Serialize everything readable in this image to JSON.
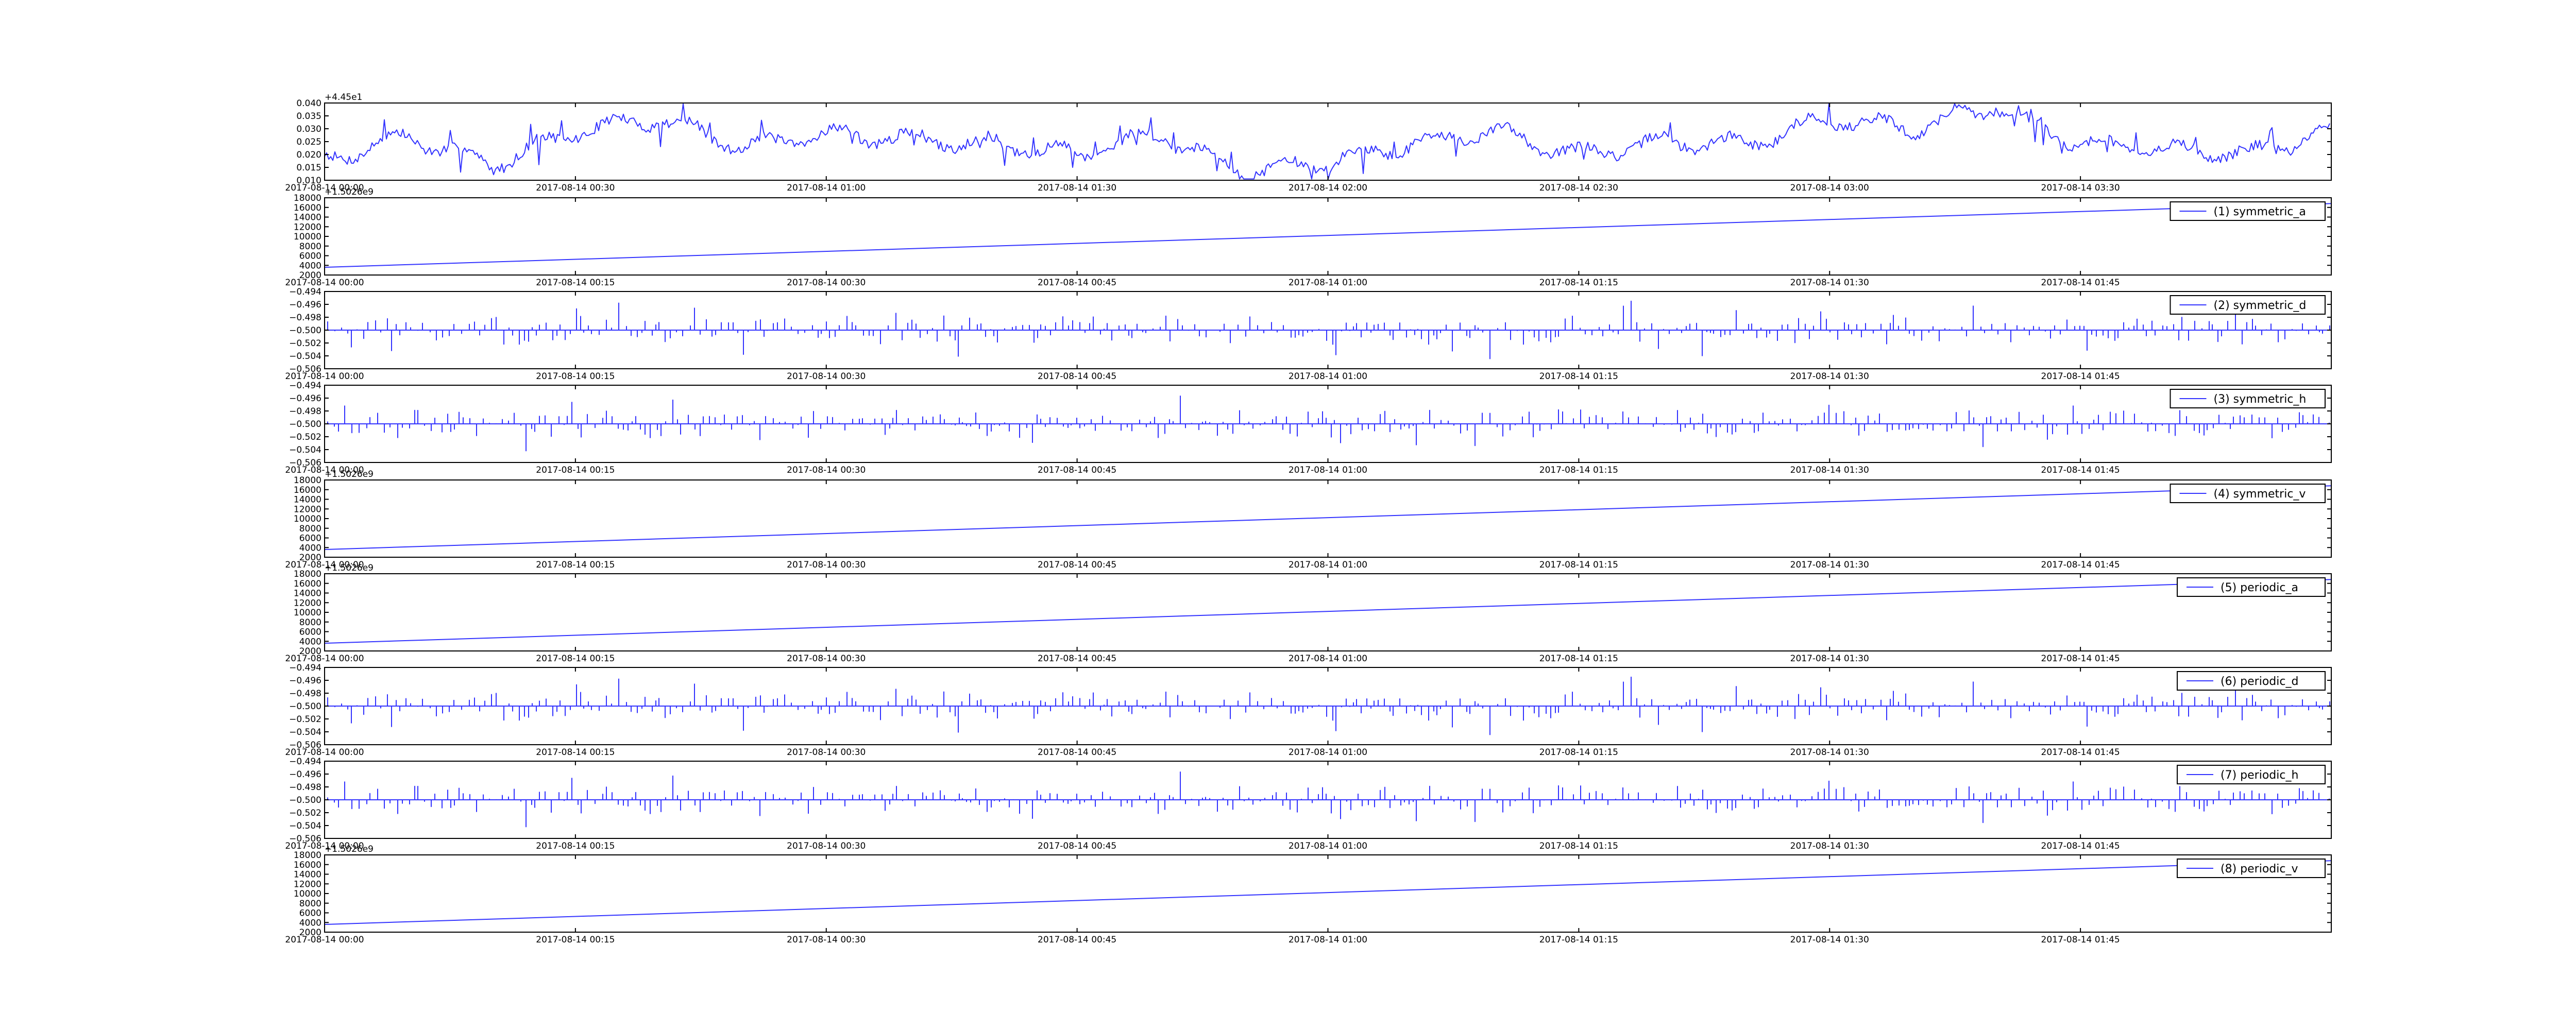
{
  "colors": {
    "line": "#3333ff",
    "axes": "#000000",
    "background": "#ffffff"
  },
  "chart_data": [
    {
      "type": "line",
      "offset_label": "+4.45e1",
      "ylim": [
        0.01,
        0.04
      ],
      "yticks": [
        "0.010",
        "0.015",
        "0.020",
        "0.025",
        "0.030",
        "0.035",
        "0.040"
      ],
      "xlim": [
        "2017-08-14 00:00",
        "2017-08-14 04:00"
      ],
      "xticks": [
        "2017-08-14 00:00",
        "2017-08-14 00:30",
        "2017-08-14 01:00",
        "2017-08-14 01:30",
        "2017-08-14 02:00",
        "2017-08-14 02:30",
        "2017-08-14 03:00",
        "2017-08-14 03:30"
      ],
      "legend": null,
      "grid": false,
      "series": [
        {
          "profile": "noise",
          "x": [
            "2017-08-14 00:00",
            "2017-08-14 00:10",
            "2017-08-14 00:20",
            "2017-08-14 00:30",
            "2017-08-14 00:40",
            "2017-08-14 00:50",
            "2017-08-14 01:00",
            "2017-08-14 01:10",
            "2017-08-14 01:20",
            "2017-08-14 01:30",
            "2017-08-14 01:40",
            "2017-08-14 01:50",
            "2017-08-14 02:00",
            "2017-08-14 02:10",
            "2017-08-14 02:20",
            "2017-08-14 02:30",
            "2017-08-14 02:40",
            "2017-08-14 02:50",
            "2017-08-14 03:00",
            "2017-08-14 03:10",
            "2017-08-14 03:20",
            "2017-08-14 03:30",
            "2017-08-14 03:40",
            "2017-08-14 03:50",
            "2017-08-14 04:00"
          ],
          "values": [
            0.018,
            0.027,
            0.016,
            0.029,
            0.034,
            0.023,
            0.028,
            0.026,
            0.024,
            0.02,
            0.028,
            0.013,
            0.017,
            0.024,
            0.029,
            0.02,
            0.025,
            0.024,
            0.034,
            0.03,
            0.039,
            0.024,
            0.022,
            0.02,
            0.029
          ]
        }
      ]
    },
    {
      "type": "line",
      "offset_label": "+1.5026e9",
      "ylim": [
        2000,
        18000
      ],
      "yticks": [
        "2000",
        "4000",
        "6000",
        "8000",
        "10000",
        "12000",
        "14000",
        "16000",
        "18000"
      ],
      "xlim": [
        "2017-08-14 00:00",
        "2017-08-14 02:00"
      ],
      "xticks": [
        "2017-08-14 00:00",
        "2017-08-14 00:15",
        "2017-08-14 00:30",
        "2017-08-14 00:45",
        "2017-08-14 01:00",
        "2017-08-14 01:15",
        "2017-08-14 01:30",
        "2017-08-14 01:45"
      ],
      "legend": "(1) symmetric_a",
      "legend_loc": "upper right",
      "grid": false,
      "series": [
        {
          "profile": "linear",
          "x": [
            "2017-08-14 00:00",
            "2017-08-14 02:00"
          ],
          "values": [
            3600,
            16800
          ]
        }
      ]
    },
    {
      "type": "line",
      "offset_label": "",
      "ylim": [
        -0.506,
        -0.494
      ],
      "yticks": [
        "−0.506",
        "−0.504",
        "−0.502",
        "−0.500",
        "−0.498",
        "−0.496",
        "−0.494"
      ],
      "xlim": [
        "2017-08-14 00:00",
        "2017-08-14 02:00"
      ],
      "xticks": [
        "2017-08-14 00:00",
        "2017-08-14 00:15",
        "2017-08-14 00:30",
        "2017-08-14 00:45",
        "2017-08-14 01:00",
        "2017-08-14 01:15",
        "2017-08-14 01:30",
        "2017-08-14 01:45"
      ],
      "legend": "(2) symmetric_d",
      "legend_loc": "upper right",
      "grid": false,
      "series": [
        {
          "profile": "spikes",
          "seed": 11,
          "baseline": -0.5,
          "amplitude": 0.0045,
          "x": [
            "2017-08-14 00:00",
            "2017-08-14 02:00"
          ],
          "values": [
            -0.5,
            -0.5
          ]
        }
      ]
    },
    {
      "type": "line",
      "offset_label": "",
      "ylim": [
        -0.506,
        -0.494
      ],
      "yticks": [
        "−0.506",
        "−0.504",
        "−0.502",
        "−0.500",
        "−0.498",
        "−0.496",
        "−0.494"
      ],
      "xlim": [
        "2017-08-14 00:00",
        "2017-08-14 02:00"
      ],
      "xticks": [
        "2017-08-14 00:00",
        "2017-08-14 00:15",
        "2017-08-14 00:30",
        "2017-08-14 00:45",
        "2017-08-14 01:00",
        "2017-08-14 01:15",
        "2017-08-14 01:30",
        "2017-08-14 01:45"
      ],
      "legend": "(3) symmetric_h",
      "legend_loc": "upper right",
      "grid": false,
      "series": [
        {
          "profile": "spikes",
          "seed": 29,
          "baseline": -0.5,
          "amplitude": 0.0045,
          "x": [
            "2017-08-14 00:00",
            "2017-08-14 02:00"
          ],
          "values": [
            -0.5,
            -0.5
          ]
        }
      ]
    },
    {
      "type": "line",
      "offset_label": "+1.5026e9",
      "ylim": [
        2000,
        18000
      ],
      "yticks": [
        "2000",
        "4000",
        "6000",
        "8000",
        "10000",
        "12000",
        "14000",
        "16000",
        "18000"
      ],
      "xlim": [
        "2017-08-14 00:00",
        "2017-08-14 02:00"
      ],
      "xticks": [
        "2017-08-14 00:00",
        "2017-08-14 00:15",
        "2017-08-14 00:30",
        "2017-08-14 00:45",
        "2017-08-14 01:00",
        "2017-08-14 01:15",
        "2017-08-14 01:30",
        "2017-08-14 01:45"
      ],
      "legend": "(4) symmetric_v",
      "legend_loc": "upper right",
      "grid": false,
      "series": [
        {
          "profile": "linear",
          "x": [
            "2017-08-14 00:00",
            "2017-08-14 02:00"
          ],
          "values": [
            3600,
            16800
          ]
        }
      ]
    },
    {
      "type": "line",
      "offset_label": "+1.5026e9",
      "ylim": [
        2000,
        18000
      ],
      "yticks": [
        "2000",
        "4000",
        "6000",
        "8000",
        "10000",
        "12000",
        "14000",
        "16000",
        "18000"
      ],
      "xlim": [
        "2017-08-14 00:00",
        "2017-08-14 02:00"
      ],
      "xticks": [
        "2017-08-14 00:00",
        "2017-08-14 00:15",
        "2017-08-14 00:30",
        "2017-08-14 00:45",
        "2017-08-14 01:00",
        "2017-08-14 01:15",
        "2017-08-14 01:30",
        "2017-08-14 01:45"
      ],
      "legend": "(5) periodic_a",
      "legend_loc": "upper right",
      "grid": false,
      "series": [
        {
          "profile": "linear",
          "x": [
            "2017-08-14 00:00",
            "2017-08-14 02:00"
          ],
          "values": [
            3600,
            16800
          ]
        }
      ]
    },
    {
      "type": "line",
      "offset_label": "",
      "ylim": [
        -0.506,
        -0.494
      ],
      "yticks": [
        "−0.506",
        "−0.504",
        "−0.502",
        "−0.500",
        "−0.498",
        "−0.496",
        "−0.494"
      ],
      "xlim": [
        "2017-08-14 00:00",
        "2017-08-14 02:00"
      ],
      "xticks": [
        "2017-08-14 00:00",
        "2017-08-14 00:15",
        "2017-08-14 00:30",
        "2017-08-14 00:45",
        "2017-08-14 01:00",
        "2017-08-14 01:15",
        "2017-08-14 01:30",
        "2017-08-14 01:45"
      ],
      "legend": "(6) periodic_d",
      "legend_loc": "upper right",
      "grid": false,
      "series": [
        {
          "profile": "spikes",
          "seed": 11,
          "baseline": -0.5,
          "amplitude": 0.0045,
          "x": [
            "2017-08-14 00:00",
            "2017-08-14 02:00"
          ],
          "values": [
            -0.5,
            -0.5
          ]
        }
      ]
    },
    {
      "type": "line",
      "offset_label": "",
      "ylim": [
        -0.506,
        -0.494
      ],
      "yticks": [
        "−0.506",
        "−0.504",
        "−0.502",
        "−0.500",
        "−0.498",
        "−0.496",
        "−0.494"
      ],
      "xlim": [
        "2017-08-14 00:00",
        "2017-08-14 02:00"
      ],
      "xticks": [
        "2017-08-14 00:00",
        "2017-08-14 00:15",
        "2017-08-14 00:30",
        "2017-08-14 00:45",
        "2017-08-14 01:00",
        "2017-08-14 01:15",
        "2017-08-14 01:30",
        "2017-08-14 01:45"
      ],
      "legend": "(7) periodic_h",
      "legend_loc": "upper right",
      "grid": false,
      "series": [
        {
          "profile": "spikes",
          "seed": 29,
          "baseline": -0.5,
          "amplitude": 0.0045,
          "x": [
            "2017-08-14 00:00",
            "2017-08-14 02:00"
          ],
          "values": [
            -0.5,
            -0.5
          ]
        }
      ]
    },
    {
      "type": "line",
      "offset_label": "+1.5026e9",
      "ylim": [
        2000,
        18000
      ],
      "yticks": [
        "2000",
        "4000",
        "6000",
        "8000",
        "10000",
        "12000",
        "14000",
        "16000",
        "18000"
      ],
      "xlim": [
        "2017-08-14 00:00",
        "2017-08-14 02:00"
      ],
      "xticks": [
        "2017-08-14 00:00",
        "2017-08-14 00:15",
        "2017-08-14 00:30",
        "2017-08-14 00:45",
        "2017-08-14 01:00",
        "2017-08-14 01:15",
        "2017-08-14 01:30",
        "2017-08-14 01:45"
      ],
      "legend": "(8) periodic_v",
      "legend_loc": "upper right",
      "grid": false,
      "series": [
        {
          "profile": "linear",
          "x": [
            "2017-08-14 00:00",
            "2017-08-14 02:00"
          ],
          "values": [
            3600,
            16800
          ]
        }
      ]
    }
  ]
}
